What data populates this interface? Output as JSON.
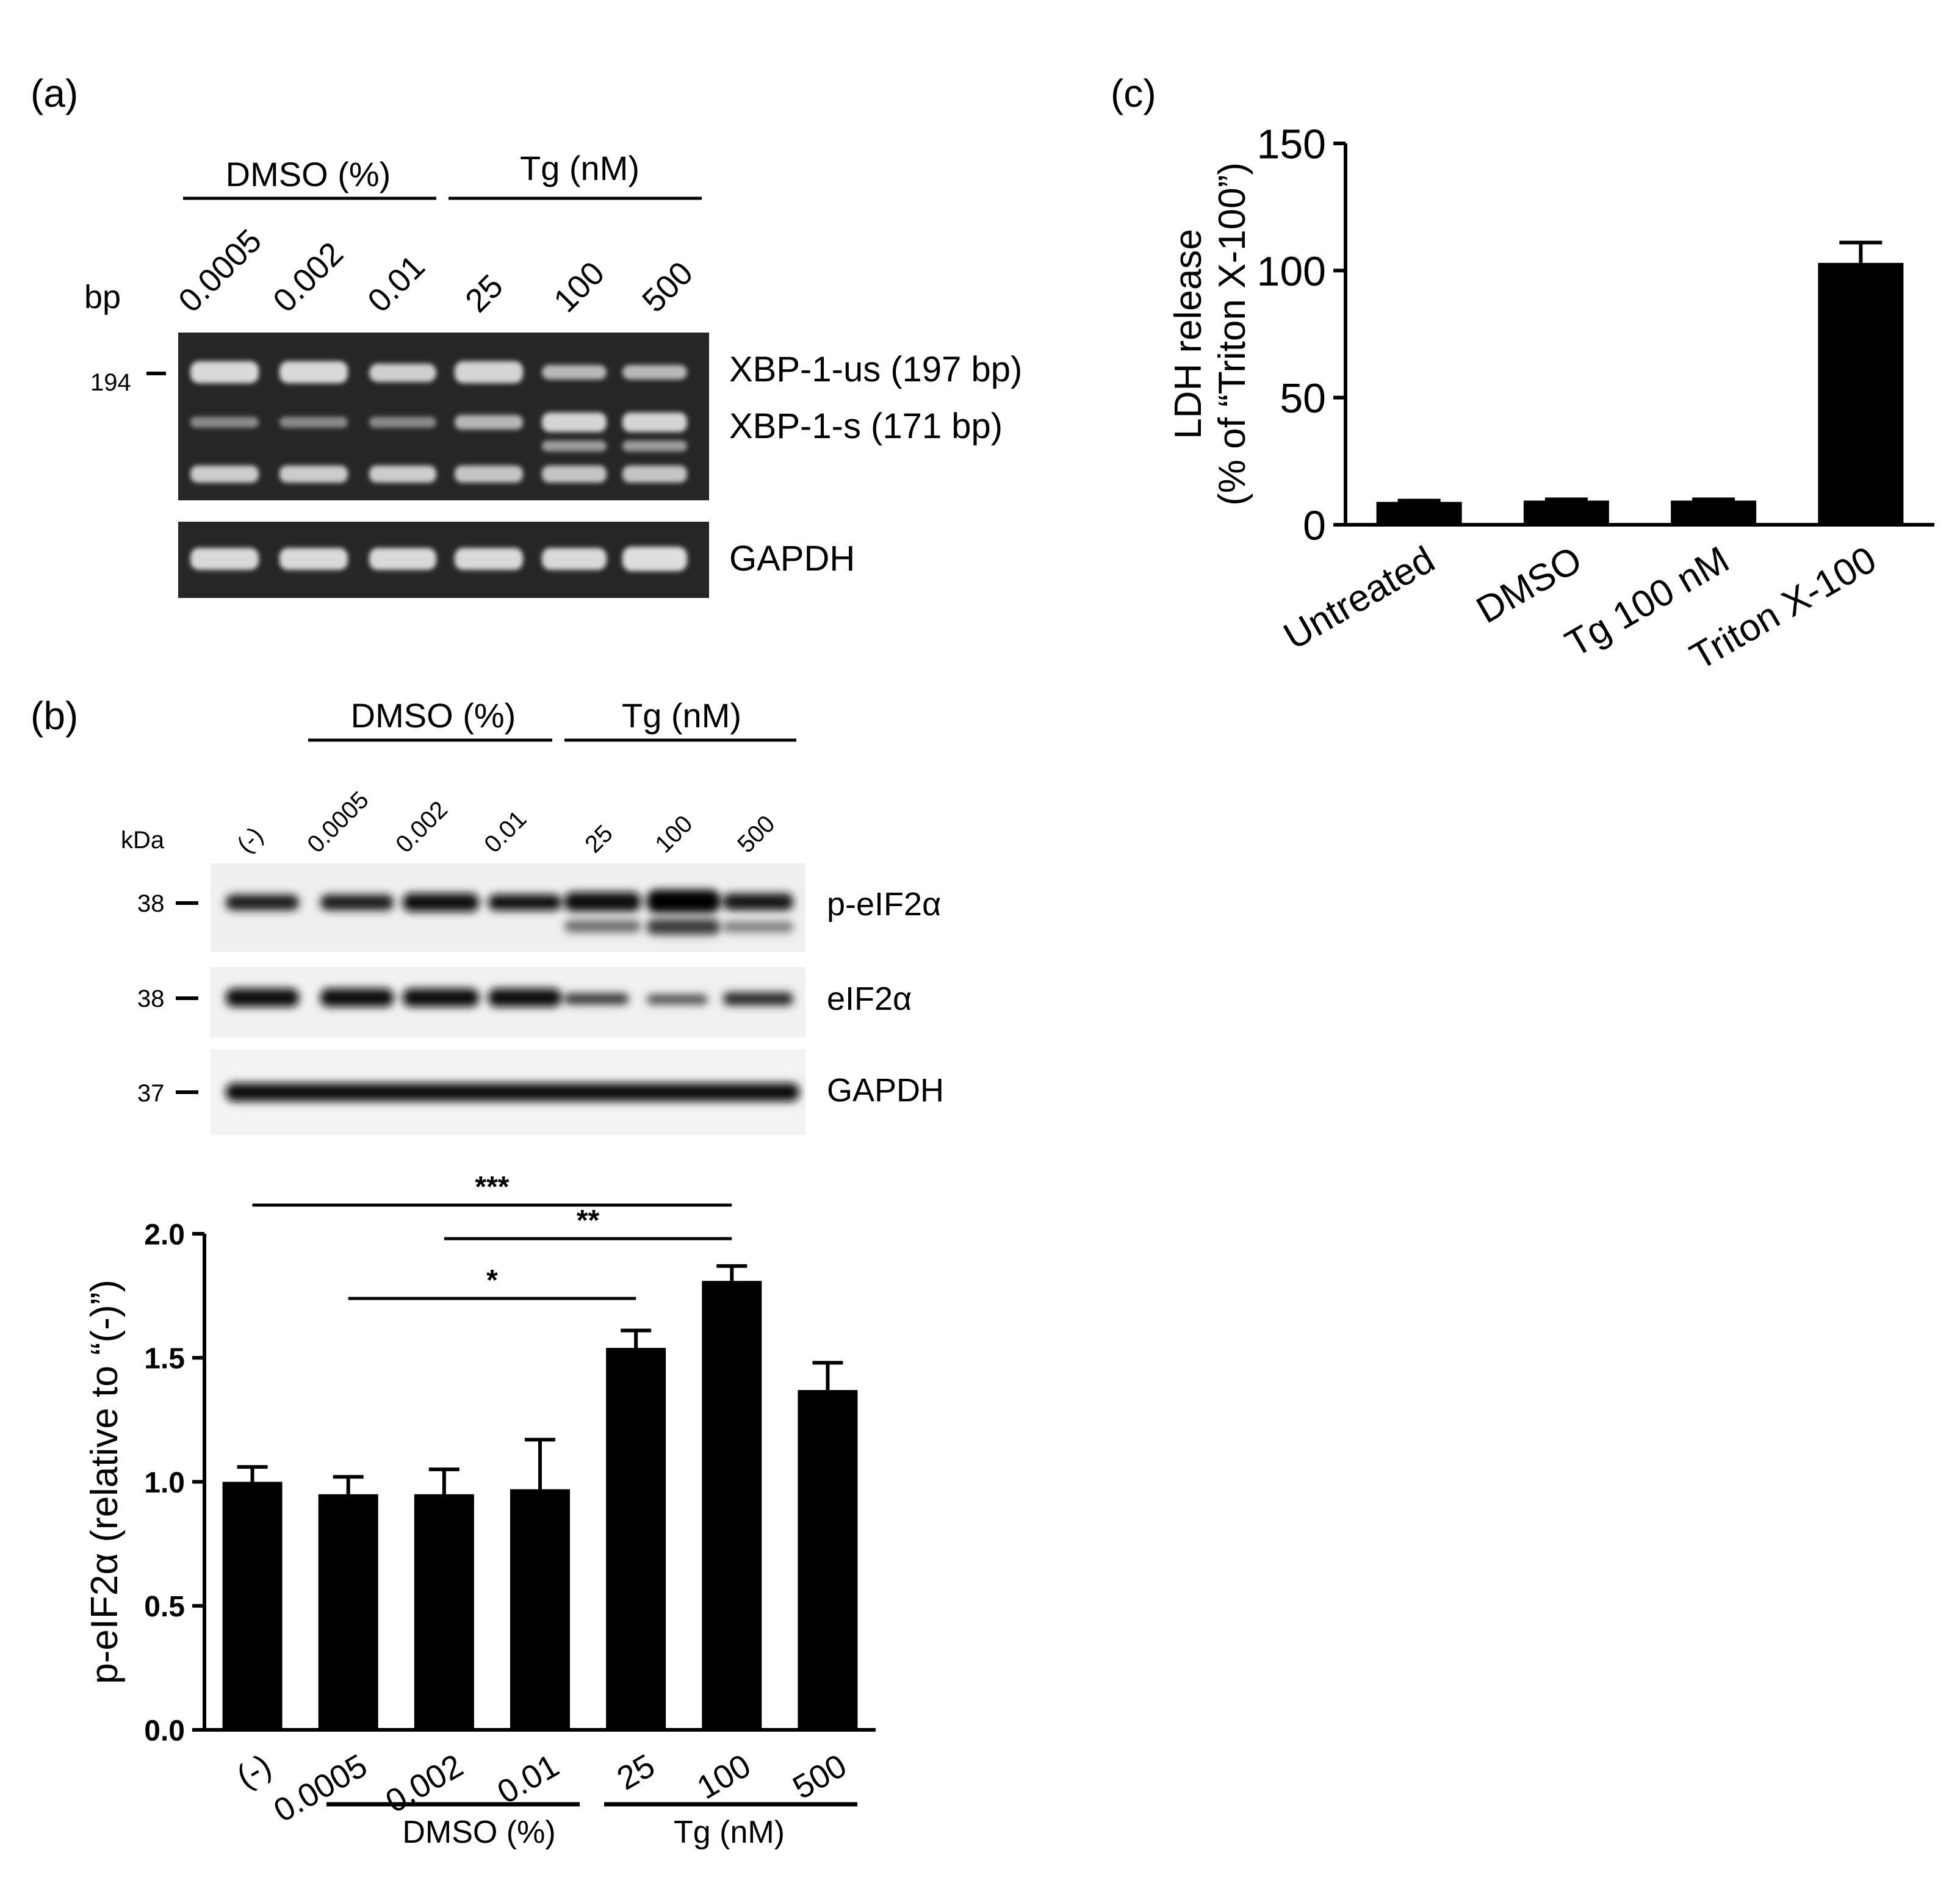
{
  "panels": {
    "a": {
      "label": "(a)",
      "groups": [
        {
          "label": "DMSO (%)"
        },
        {
          "label": "Tg (nM)"
        }
      ],
      "unit_label": "bp",
      "lanes": [
        "0.0005",
        "0.002",
        "0.01",
        "25",
        "100",
        "500"
      ],
      "marker": "194",
      "bands": [
        "XBP-1-us (197 bp)",
        "XBP-1-s (171 bp)"
      ],
      "loading_label": "GAPDH"
    },
    "b": {
      "label": "(b)",
      "groups": [
        {
          "label": "DMSO (%)"
        },
        {
          "label": "Tg (nM)"
        }
      ],
      "unit_label": "kDa",
      "lanes": [
        "(-)",
        "0.0005",
        "0.002",
        "0.01",
        "25",
        "100",
        "500"
      ],
      "blots": [
        {
          "marker": "38",
          "label": "p-eIF2α"
        },
        {
          "marker": "38",
          "label": "eIF2α"
        },
        {
          "marker": "37",
          "label": "GAPDH"
        }
      ],
      "group_labels_bottom": [
        "DMSO (%)",
        "Tg (nM)"
      ]
    },
    "c": {
      "label": "(c)"
    }
  },
  "chart_data": [
    {
      "panel": "c",
      "type": "bar",
      "categories": [
        "Untreated",
        "DMSO",
        "Tg 100 nM",
        "Triton X-100"
      ],
      "values": [
        9,
        9.5,
        9.5,
        103
      ],
      "errors": [
        0.5,
        0.5,
        0.5,
        8
      ],
      "ylabel_lines": [
        "LDH release",
        "(% of “Triton X-100”)"
      ],
      "ylim": [
        0,
        150
      ],
      "yticks": [
        "0",
        "50",
        "100",
        "150"
      ],
      "bar_color": "#000000"
    },
    {
      "panel": "b",
      "type": "bar",
      "categories": [
        "(-)",
        "0.0005",
        "0.002",
        "0.01",
        "25",
        "100",
        "500"
      ],
      "values": [
        1.0,
        0.95,
        0.95,
        0.97,
        1.54,
        1.81,
        1.37
      ],
      "errors": [
        0.06,
        0.07,
        0.1,
        0.2,
        0.07,
        0.06,
        0.11
      ],
      "ylabel": "p-eIF2α (relative to “(-)”)",
      "ylim": [
        0,
        2.0
      ],
      "yticks": [
        "0.0",
        "0.5",
        "1.0",
        "1.5",
        "2.0"
      ],
      "significance": [
        {
          "from": 1,
          "to": 4,
          "label": "*"
        },
        {
          "from": 2,
          "to": 5,
          "label": "**"
        },
        {
          "from": 0,
          "to": 5,
          "label": "***"
        }
      ],
      "bar_color": "#000000"
    }
  ]
}
